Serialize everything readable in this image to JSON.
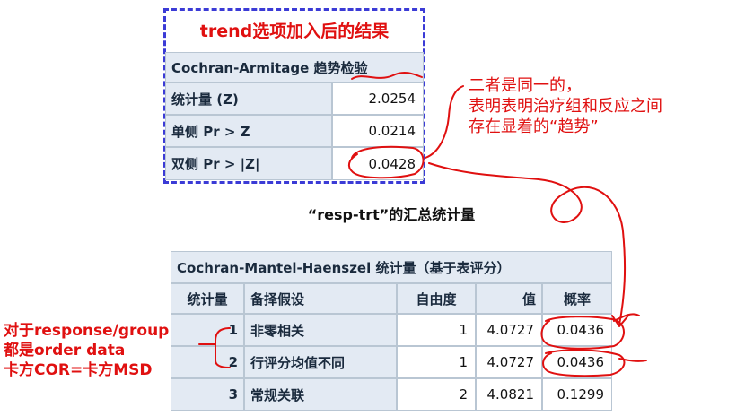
{
  "trend": {
    "title": "trend选项加入后的结果",
    "table_header": "Cochran-Armitage 趋势检验",
    "rows": [
      {
        "label": "统计量 (Z)",
        "value": "2.0254"
      },
      {
        "label": "单侧 Pr > Z",
        "value": "0.0214"
      },
      {
        "label": "双侧 Pr > |Z|",
        "value": "0.0428"
      }
    ]
  },
  "note_right": {
    "lines": [
      "二者是同一的，",
      "表明表明治疗组和反应之间",
      "存在显着的“趋势”"
    ]
  },
  "cmh": {
    "caption": "“resp-trt”的汇总统计量",
    "table_header": "Cochran-Mantel-Haenszel 统计量（基于表评分）",
    "columns": [
      "统计量",
      "备择假设",
      "自由度",
      "值",
      "概率"
    ],
    "rows": [
      {
        "stat": "1",
        "alt": "非零相关",
        "df": "1",
        "value": "4.0727",
        "prob": "0.0436"
      },
      {
        "stat": "2",
        "alt": "行评分均值不同",
        "df": "1",
        "value": "4.0727",
        "prob": "0.0436"
      },
      {
        "stat": "3",
        "alt": "常规关联",
        "df": "2",
        "value": "4.0821",
        "prob": "0.1299"
      }
    ]
  },
  "note_left": {
    "lines": [
      "对于response/group",
      "都是order data",
      "卡方COR=卡方MSD"
    ]
  },
  "colors": {
    "annotation": "#e01010",
    "dash_border": "#3b3bd6",
    "header_bg": "#e3eaf3"
  }
}
